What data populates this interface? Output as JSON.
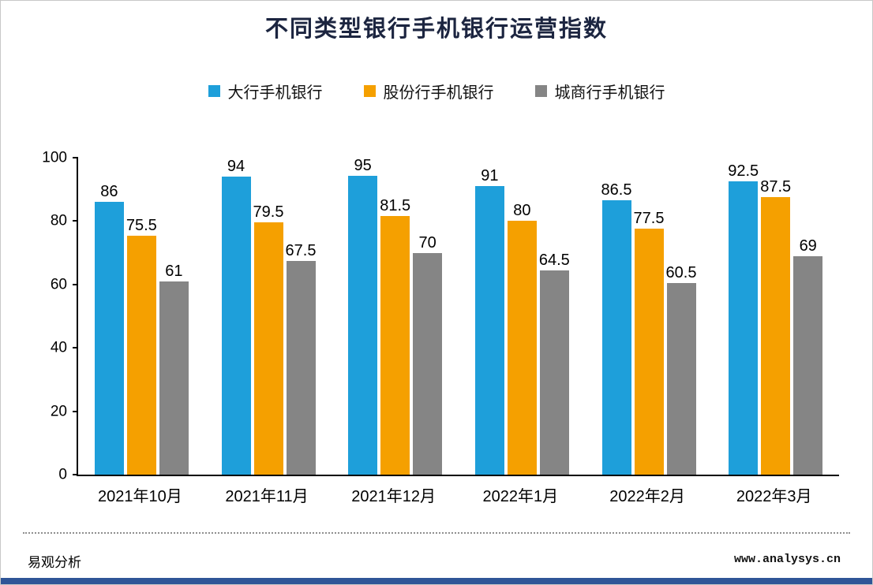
{
  "title": "不同类型银行手机银行运营指数",
  "legend": [
    {
      "label": "大行手机银行",
      "color": "#1E9FDA"
    },
    {
      "label": "股份行手机银行",
      "color": "#F5A000"
    },
    {
      "label": "城商行手机银行",
      "color": "#858585"
    }
  ],
  "footer": {
    "left": "易观分析",
    "right": "www.analysys.cn"
  },
  "colors": {
    "title_text": "#1c2540",
    "bottom_strip": "#2F5597",
    "axis": "#000000"
  },
  "chart_data": {
    "type": "bar",
    "title": "不同类型银行手机银行运营指数",
    "categories": [
      "2021年10月",
      "2021年11月",
      "2021年12月",
      "2022年1月",
      "2022年2月",
      "2022年3月"
    ],
    "series": [
      {
        "name": "大行手机银行",
        "color": "#1E9FDA",
        "values": [
          86,
          94,
          95,
          91,
          86.5,
          92.5
        ]
      },
      {
        "name": "股份行手机银行",
        "color": "#F5A000",
        "values": [
          75.5,
          79.5,
          81.5,
          80,
          77.5,
          87.5
        ]
      },
      {
        "name": "城商行手机银行",
        "color": "#858585",
        "values": [
          61,
          67.5,
          70,
          64.5,
          60.5,
          69
        ]
      }
    ],
    "xlabel": "",
    "ylabel": "",
    "ylim": [
      0,
      100
    ],
    "yticks": [
      0,
      20,
      40,
      60,
      80,
      100
    ],
    "grid": false,
    "legend_position": "top"
  }
}
